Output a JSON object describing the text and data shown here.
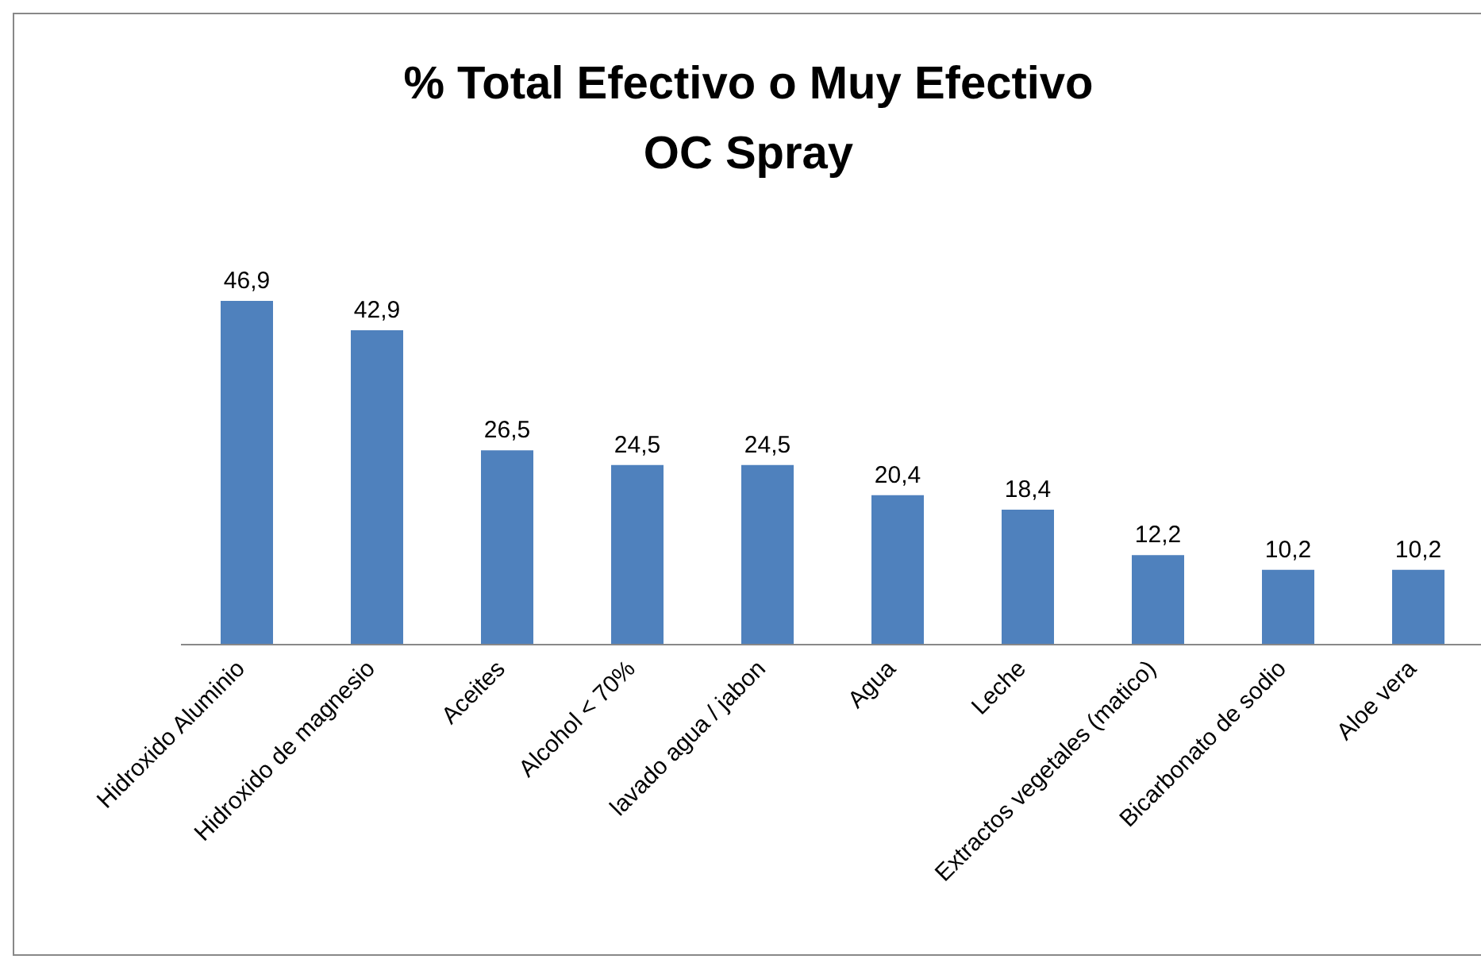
{
  "chart_data": {
    "type": "bar",
    "title": "% Total Efectivo o Muy Efectivo\nOC Spray",
    "categories": [
      "Hidroxido Aluminio",
      "Hidroxido de magnesio",
      "Aceites",
      "Alcohol < 70%",
      "lavado agua / jabon",
      "Agua",
      "Leche",
      "Extractos vegetales (matico)",
      "Bicarbonato de sodio",
      "Aloe vera"
    ],
    "values": [
      46.9,
      42.9,
      26.5,
      24.5,
      24.5,
      20.4,
      18.4,
      12.2,
      10.2,
      10.2
    ],
    "value_labels": [
      "46,9",
      "42,9",
      "26,5",
      "24,5",
      "24,5",
      "20,4",
      "18,4",
      "12,2",
      "10,2",
      "10,2"
    ],
    "color": "#4f81bd"
  }
}
